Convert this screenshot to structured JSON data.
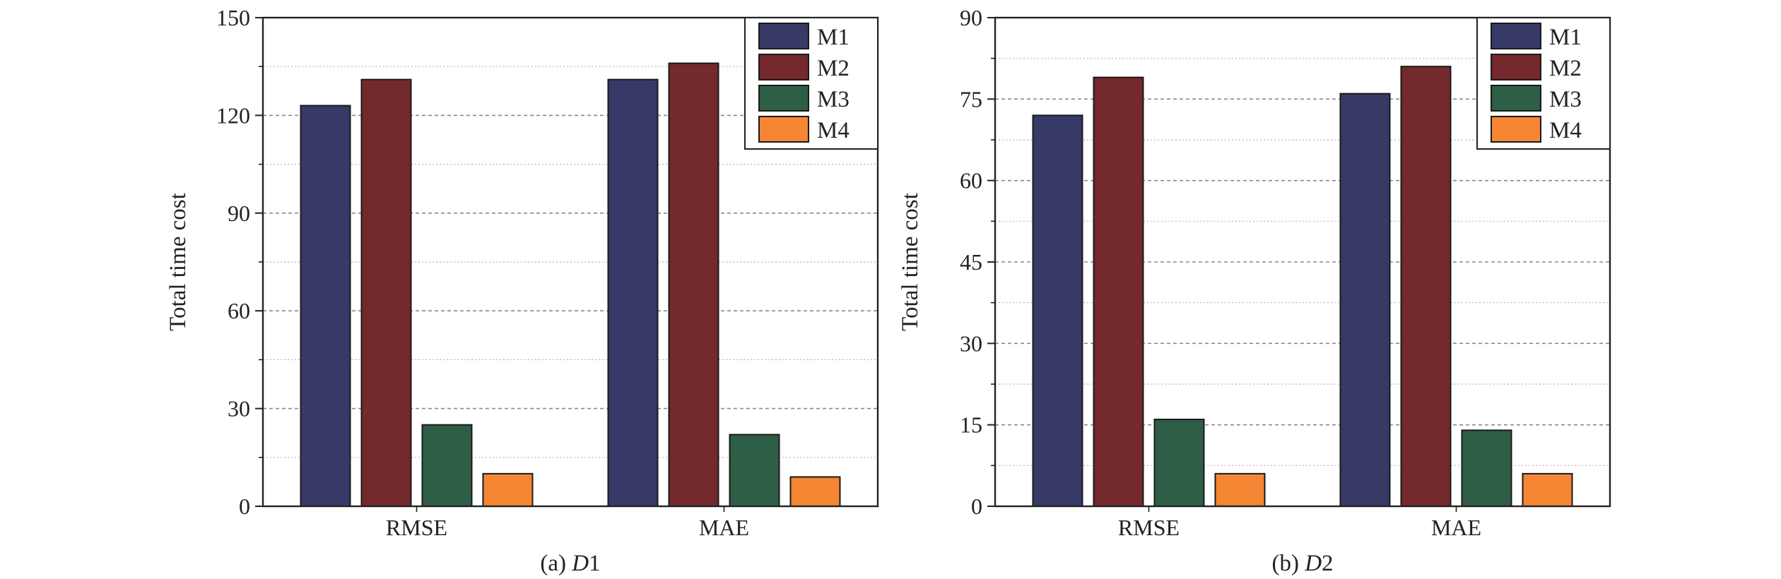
{
  "chart_data": [
    {
      "type": "bar",
      "panel_caption_prefix": "(a) ",
      "panel_caption_italic": "D",
      "panel_caption_suffix": "1",
      "ylabel": "Total time cost",
      "xlabel": "",
      "categories": [
        "RMSE",
        "MAE"
      ],
      "ylim": [
        0,
        150
      ],
      "yticks": [
        0,
        30,
        60,
        90,
        120,
        150
      ],
      "minor_grid_step": 15,
      "grid": true,
      "legend_position": "top-right",
      "series": [
        {
          "name": "M1",
          "values": [
            123,
            131
          ],
          "color": "#373967"
        },
        {
          "name": "M2",
          "values": [
            131,
            136
          ],
          "color": "#74292c"
        },
        {
          "name": "M3",
          "values": [
            25,
            22
          ],
          "color": "#2e5e45"
        },
        {
          "name": "M4",
          "values": [
            10,
            9
          ],
          "color": "#f58634"
        }
      ]
    },
    {
      "type": "bar",
      "panel_caption_prefix": "(b) ",
      "panel_caption_italic": "D",
      "panel_caption_suffix": "2",
      "ylabel": "Total time cost",
      "xlabel": "",
      "categories": [
        "RMSE",
        "MAE"
      ],
      "ylim": [
        0,
        90
      ],
      "yticks": [
        0,
        15,
        30,
        45,
        60,
        75,
        90
      ],
      "minor_grid_step": 7.5,
      "grid": true,
      "legend_position": "top-right",
      "series": [
        {
          "name": "M1",
          "values": [
            72,
            76
          ],
          "color": "#373967"
        },
        {
          "name": "M2",
          "values": [
            79,
            81
          ],
          "color": "#74292c"
        },
        {
          "name": "M3",
          "values": [
            16,
            14
          ],
          "color": "#2e5e45"
        },
        {
          "name": "M4",
          "values": [
            6,
            6
          ],
          "color": "#f58634"
        }
      ]
    }
  ]
}
